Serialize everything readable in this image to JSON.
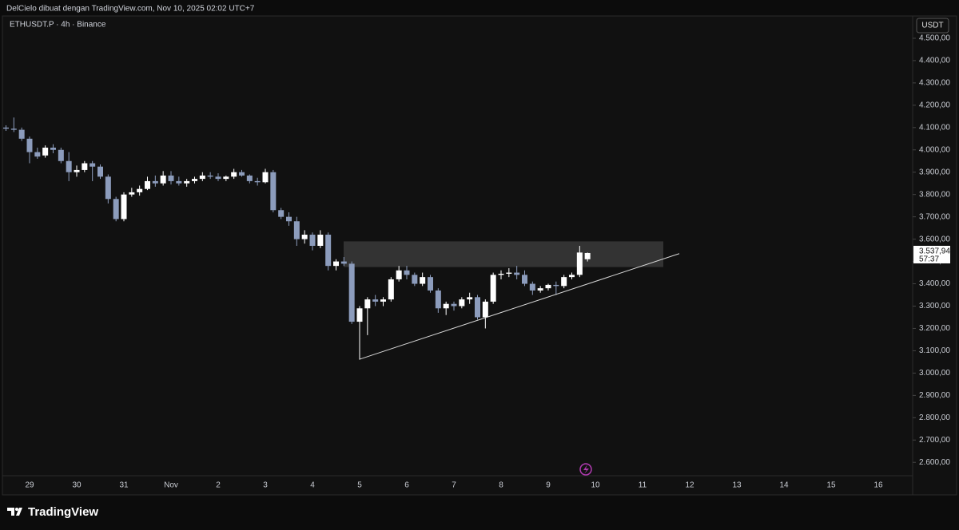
{
  "header": {
    "attribution": "DelCielo dibuat dengan TradingView.com, Nov 10, 2025 02:02 UTC+7"
  },
  "chart_data": {
    "type": "candlestick",
    "title": "ETHUSDT.P · 4h · Binance",
    "currency": "USDT",
    "up_color": "#ffffff",
    "down_color": "#8c9cbc",
    "open": [
      4100,
      4095,
      4090,
      4050,
      3990,
      3975,
      4010,
      4000,
      3950,
      3900,
      3910,
      3940,
      3925,
      3880,
      3780,
      3690,
      3800,
      3810,
      3825,
      3860,
      3850,
      3885,
      3860,
      3850,
      3860,
      3870,
      3885,
      3880,
      3870,
      3880,
      3900,
      3885,
      3860,
      3855,
      3900,
      3730,
      3700,
      3680,
      3600,
      3620,
      3570,
      3620,
      3480,
      3500,
      3490,
      3230,
      3290,
      3330,
      3320,
      3330,
      3420,
      3460,
      3440,
      3400,
      3430,
      3370,
      3290,
      3310,
      3300,
      3330,
      3340,
      3250,
      3320,
      3440,
      3445,
      3450,
      3440,
      3400,
      3370,
      3380,
      3395,
      3390,
      3430,
      3440,
      3510
    ],
    "high": [
      4110,
      4145,
      4100,
      4060,
      4010,
      4020,
      4025,
      4010,
      3990,
      3930,
      3950,
      3950,
      3935,
      3890,
      3790,
      3810,
      3830,
      3840,
      3880,
      3885,
      3905,
      3905,
      3880,
      3870,
      3880,
      3900,
      3900,
      3895,
      3885,
      3915,
      3910,
      3890,
      3875,
      3915,
      3910,
      3740,
      3720,
      3700,
      3640,
      3630,
      3640,
      3630,
      3510,
      3520,
      3500,
      3300,
      3340,
      3350,
      3340,
      3430,
      3480,
      3480,
      3450,
      3450,
      3440,
      3380,
      3320,
      3320,
      3340,
      3360,
      3350,
      3330,
      3450,
      3460,
      3470,
      3480,
      3460,
      3410,
      3390,
      3400,
      3410,
      3440,
      3450,
      3570,
      3540
    ],
    "low": [
      4085,
      4080,
      4040,
      3940,
      3960,
      3965,
      3985,
      3940,
      3860,
      3880,
      3900,
      3860,
      3870,
      3760,
      3680,
      3680,
      3790,
      3795,
      3820,
      3835,
      3840,
      3845,
      3840,
      3835,
      3850,
      3860,
      3870,
      3860,
      3860,
      3870,
      3880,
      3850,
      3840,
      3850,
      3720,
      3690,
      3660,
      3570,
      3580,
      3550,
      3560,
      3460,
      3460,
      3480,
      3220,
      3060,
      3170,
      3300,
      3300,
      3320,
      3410,
      3420,
      3390,
      3390,
      3360,
      3270,
      3260,
      3280,
      3290,
      3310,
      3240,
      3200,
      3310,
      3420,
      3430,
      3420,
      3390,
      3350,
      3360,
      3370,
      3350,
      3380,
      3420,
      3430,
      3500
    ],
    "close": [
      4095,
      4090,
      4050,
      3990,
      3970,
      4010,
      4000,
      3950,
      3900,
      3910,
      3940,
      3925,
      3880,
      3780,
      3690,
      3800,
      3810,
      3825,
      3860,
      3850,
      3885,
      3860,
      3850,
      3860,
      3870,
      3885,
      3880,
      3870,
      3880,
      3900,
      3885,
      3860,
      3855,
      3900,
      3730,
      3700,
      3680,
      3600,
      3620,
      3570,
      3620,
      3480,
      3500,
      3490,
      3230,
      3290,
      3330,
      3320,
      3330,
      3420,
      3460,
      3440,
      3400,
      3430,
      3370,
      3290,
      3310,
      3300,
      3330,
      3340,
      3250,
      3320,
      3440,
      3445,
      3450,
      3440,
      3400,
      3370,
      3380,
      3395,
      3390,
      3430,
      3440,
      3540,
      3537.94
    ],
    "x_labels": [
      "29",
      "30",
      "31",
      "Nov",
      "2",
      "3",
      "4",
      "5",
      "6",
      "7",
      "8",
      "9",
      "10",
      "11",
      "12",
      "13",
      "14",
      "15",
      "16"
    ],
    "ylim": [
      2540,
      4600
    ],
    "yticks": [
      {
        "value": 2600,
        "label": "2.600,00"
      },
      {
        "value": 2700,
        "label": "2.700,00"
      },
      {
        "value": 2800,
        "label": "2.800,00"
      },
      {
        "value": 2900,
        "label": "2.900,00"
      },
      {
        "value": 3000,
        "label": "3.000,00"
      },
      {
        "value": 3100,
        "label": "3.100,00"
      },
      {
        "value": 3200,
        "label": "3.200,00"
      },
      {
        "value": 3300,
        "label": "3.300,00"
      },
      {
        "value": 3400,
        "label": "3.400,00"
      },
      {
        "value": 3500,
        "label": "3.500,00"
      },
      {
        "value": 3600,
        "label": "3.600,00"
      },
      {
        "value": 3700,
        "label": "3.700,00"
      },
      {
        "value": 3800,
        "label": "3.800,00"
      },
      {
        "value": 3900,
        "label": "3.900,00"
      },
      {
        "value": 4000,
        "label": "4.000,00"
      },
      {
        "value": 4100,
        "label": "4.100,00"
      },
      {
        "value": 4200,
        "label": "4.200,00"
      },
      {
        "value": 4300,
        "label": "4.300,00"
      },
      {
        "value": 4400,
        "label": "4.400,00"
      },
      {
        "value": 4500,
        "label": "4.500,00"
      }
    ],
    "zone": {
      "low": 3475,
      "high": 3590
    },
    "trendline": {
      "start": 3062,
      "end": 3535
    },
    "price_marker": {
      "value": 3537.94,
      "label": "3.537,94",
      "countdown": "57:37"
    }
  },
  "footer": {
    "brand": "TradingView"
  }
}
